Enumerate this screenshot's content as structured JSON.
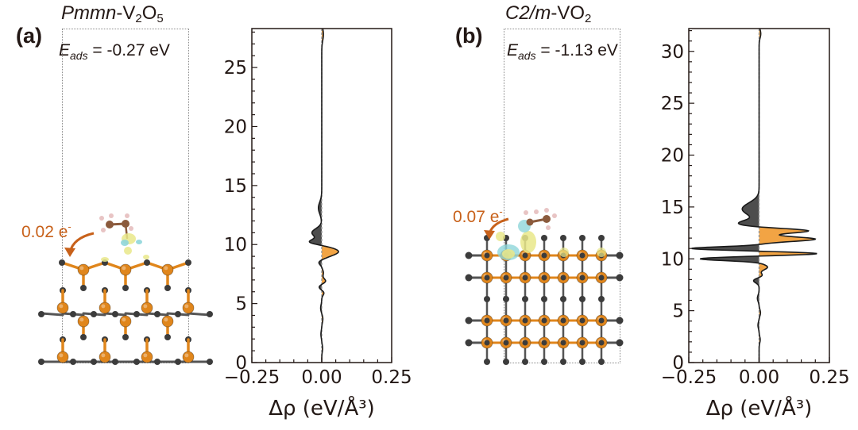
{
  "figure": {
    "panels": [
      {
        "label": "(a)",
        "material_italic": "Pmmn",
        "material_plain": "-V",
        "material_sub1": "2",
        "material_mid": "O",
        "material_sub2": "5",
        "eads_symbol": "E",
        "eads_sub": "ads",
        "eads_value": " = -0.27 eV",
        "charge_transfer": "0.02 e",
        "charge_sign": "-"
      },
      {
        "label": "(b)",
        "material_italic": "C2/m",
        "material_plain": "-VO",
        "material_sub1": "2",
        "material_mid": "",
        "material_sub2": "",
        "eads_symbol": "E",
        "eads_sub": "ads",
        "eads_value": " = -1.13 eV",
        "charge_transfer": "0.07 e",
        "charge_sign": "-"
      }
    ],
    "colors": {
      "positive_fill": "#f2a444",
      "negative_fill": "#4d4d4d",
      "vanadium": "#e0861c",
      "oxygen": "#3c3c3c",
      "annotation": "#c8611a",
      "iso_yellow": "#e9e88a",
      "iso_cyan": "#8fd6da"
    }
  },
  "chart_data": [
    {
      "type": "area",
      "title": "",
      "xlabel": "Δρ (eV/Å³)",
      "ylabel": "",
      "xlim": [
        -0.25,
        0.25
      ],
      "ylim": [
        0,
        28.3
      ],
      "xticks": [
        -0.25,
        0.0,
        0.25
      ],
      "xtick_labels": [
        "−0.25",
        "0.00",
        "0.25"
      ],
      "yticks": [
        0,
        5,
        10,
        15,
        20,
        25
      ],
      "ytick_labels": [
        "0",
        "5",
        "10",
        "15",
        "20",
        "25"
      ],
      "grid": false,
      "fill_rule": "orange where Δρ>0, dark gray where Δρ<0",
      "peaks": [
        {
          "z": 27.8,
          "amp": 0.006,
          "w": 0.5
        },
        {
          "z": 13.1,
          "amp": -0.012,
          "w": 0.5
        },
        {
          "z": 11.0,
          "amp": -0.035,
          "w": 0.35
        },
        {
          "z": 10.2,
          "amp": -0.045,
          "w": 0.22
        },
        {
          "z": 9.4,
          "amp": 0.06,
          "w": 0.35
        },
        {
          "z": 8.5,
          "amp": -0.012,
          "w": 0.2
        },
        {
          "z": 7.6,
          "amp": 0.006,
          "w": 0.25
        },
        {
          "z": 6.9,
          "amp": 0.014,
          "w": 0.2
        },
        {
          "z": 6.4,
          "amp": -0.01,
          "w": 0.2
        },
        {
          "z": 5.9,
          "amp": 0.008,
          "w": 0.2
        },
        {
          "z": 4.6,
          "amp": -0.004,
          "w": 0.3
        },
        {
          "z": 3.7,
          "amp": 0.004,
          "w": 0.3
        },
        {
          "z": 2.4,
          "amp": -0.003,
          "w": 0.3
        },
        {
          "z": 1.2,
          "amp": 0.003,
          "w": 0.3
        }
      ]
    },
    {
      "type": "area",
      "title": "",
      "xlabel": "Δρ (eV/Å³)",
      "ylabel": "",
      "xlim": [
        -0.25,
        0.25
      ],
      "ylim": [
        0,
        32.2
      ],
      "xticks": [
        -0.25,
        0.0,
        0.25
      ],
      "xtick_labels": [
        "−0.25",
        "0.00",
        "0.25"
      ],
      "yticks": [
        0,
        5,
        10,
        15,
        20,
        25,
        30
      ],
      "ytick_labels": [
        "0",
        "5",
        "10",
        "15",
        "20",
        "25",
        "30"
      ],
      "grid": false,
      "fill_rule": "orange where Δρ>0, dark gray where Δρ<0",
      "peaks": [
        {
          "z": 31.7,
          "amp": 0.006,
          "w": 0.4
        },
        {
          "z": 14.8,
          "amp": -0.06,
          "w": 0.6
        },
        {
          "z": 13.4,
          "amp": -0.07,
          "w": 0.3
        },
        {
          "z": 12.7,
          "amp": 0.18,
          "w": 0.22
        },
        {
          "z": 11.9,
          "amp": 0.2,
          "w": 0.22
        },
        {
          "z": 11.0,
          "amp": -0.24,
          "w": 0.16
        },
        {
          "z": 10.5,
          "amp": 0.21,
          "w": 0.15
        },
        {
          "z": 10.0,
          "amp": -0.21,
          "w": 0.17
        },
        {
          "z": 9.2,
          "amp": 0.03,
          "w": 0.25
        },
        {
          "z": 8.4,
          "amp": 0.012,
          "w": 0.2
        },
        {
          "z": 7.9,
          "amp": -0.02,
          "w": 0.22
        },
        {
          "z": 6.2,
          "amp": -0.006,
          "w": 0.3
        },
        {
          "z": 4.8,
          "amp": 0.005,
          "w": 0.3
        },
        {
          "z": 3.6,
          "amp": -0.004,
          "w": 0.3
        },
        {
          "z": 2.2,
          "amp": 0.004,
          "w": 0.3
        }
      ]
    }
  ]
}
